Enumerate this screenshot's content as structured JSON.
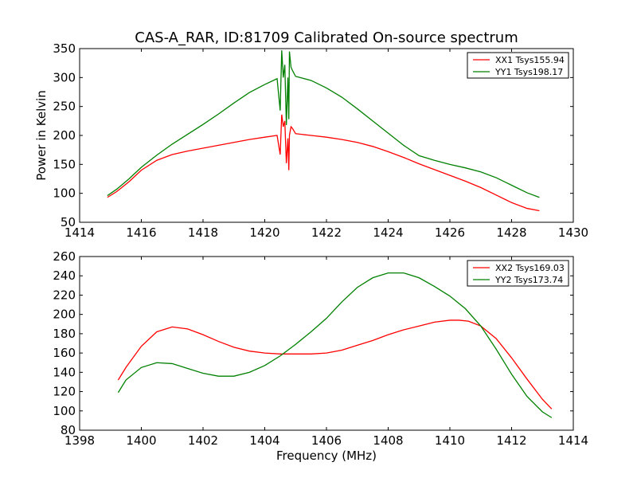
{
  "chart_data": [
    {
      "type": "line",
      "title": "CAS-A_RAR, ID:81709 Calibrated On-source spectrum",
      "xlabel": "",
      "ylabel": "Power in Kelvin",
      "xlim": [
        1414,
        1430
      ],
      "ylim": [
        50,
        350
      ],
      "xticks": [
        1414,
        1416,
        1418,
        1420,
        1422,
        1424,
        1426,
        1428,
        1430
      ],
      "yticks": [
        50,
        100,
        150,
        200,
        250,
        300,
        350
      ],
      "xtick_labels": [
        "1414",
        "1416",
        "1418",
        "1420",
        "1422",
        "1424",
        "1426",
        "1428",
        "1430"
      ],
      "ytick_labels": [
        "50",
        "100",
        "150",
        "200",
        "250",
        "300",
        "350"
      ],
      "grid": false,
      "legend_position": "top-right",
      "series": [
        {
          "name": "XX1 Tsys155.94",
          "color": "#ff0000",
          "x": [
            1414.9,
            1415.2,
            1415.6,
            1416.0,
            1416.5,
            1417.0,
            1417.5,
            1418.0,
            1418.5,
            1419.0,
            1419.5,
            1420.0,
            1420.4,
            1420.5,
            1420.55,
            1420.6,
            1420.65,
            1420.7,
            1420.75,
            1420.78,
            1420.8,
            1420.85,
            1420.9,
            1421.0,
            1421.5,
            1422.0,
            1422.5,
            1423.0,
            1423.5,
            1424.0,
            1424.5,
            1425.0,
            1425.5,
            1426.0,
            1426.5,
            1427.0,
            1427.5,
            1428.0,
            1428.5,
            1428.9
          ],
          "y": [
            93,
            103,
            120,
            140,
            157,
            167,
            173,
            178,
            183,
            188,
            193,
            197,
            200,
            167,
            236,
            215,
            225,
            152,
            195,
            140,
            200,
            215,
            212,
            203,
            200,
            197,
            193,
            188,
            181,
            172,
            162,
            151,
            141,
            131,
            121,
            110,
            97,
            84,
            74,
            70
          ]
        },
        {
          "name": "YY1 Tsys198.17",
          "color": "#008000",
          "x": [
            1414.9,
            1415.2,
            1415.6,
            1416.0,
            1416.5,
            1417.0,
            1417.5,
            1418.0,
            1418.5,
            1419.0,
            1419.5,
            1420.0,
            1420.4,
            1420.5,
            1420.55,
            1420.6,
            1420.65,
            1420.7,
            1420.75,
            1420.78,
            1420.8,
            1420.85,
            1420.9,
            1421.0,
            1421.5,
            1422.0,
            1422.5,
            1423.0,
            1423.5,
            1424.0,
            1424.5,
            1425.0,
            1425.5,
            1426.0,
            1426.5,
            1427.0,
            1427.5,
            1428.0,
            1428.5,
            1428.9
          ],
          "y": [
            96,
            107,
            125,
            145,
            166,
            185,
            202,
            219,
            237,
            256,
            274,
            288,
            298,
            243,
            347,
            300,
            322,
            218,
            300,
            228,
            345,
            318,
            312,
            302,
            295,
            282,
            266,
            246,
            225,
            204,
            183,
            165,
            157,
            150,
            144,
            137,
            127,
            114,
            101,
            93
          ]
        }
      ]
    },
    {
      "type": "line",
      "title": "",
      "xlabel": "Frequency (MHz)",
      "ylabel": "",
      "xlim": [
        1398,
        1414
      ],
      "ylim": [
        80,
        260
      ],
      "xticks": [
        1398,
        1400,
        1402,
        1404,
        1406,
        1408,
        1410,
        1412,
        1414
      ],
      "yticks": [
        80,
        100,
        120,
        140,
        160,
        180,
        200,
        220,
        240,
        260
      ],
      "xtick_labels": [
        "1398",
        "1400",
        "1402",
        "1404",
        "1406",
        "1408",
        "1410",
        "1412",
        "1414"
      ],
      "ytick_labels": [
        "80",
        "100",
        "120",
        "140",
        "160",
        "180",
        "200",
        "220",
        "240",
        "260"
      ],
      "grid": false,
      "legend_position": "top-right",
      "series": [
        {
          "name": "XX2 Tsys169.03",
          "color": "#ff0000",
          "x": [
            1399.25,
            1399.5,
            1400.0,
            1400.5,
            1401.0,
            1401.5,
            1402.0,
            1402.5,
            1403.0,
            1403.5,
            1404.0,
            1404.5,
            1405.0,
            1405.5,
            1406.0,
            1406.5,
            1407.0,
            1407.5,
            1408.0,
            1408.5,
            1409.0,
            1409.5,
            1410.0,
            1410.3,
            1410.6,
            1411.0,
            1411.5,
            1412.0,
            1412.5,
            1413.0,
            1413.3
          ],
          "y": [
            132,
            145,
            167,
            182,
            187,
            185,
            179,
            172,
            166,
            162,
            160,
            159,
            159,
            159,
            160,
            163,
            168,
            173,
            179,
            184,
            188,
            192,
            194,
            194,
            193,
            188,
            175,
            155,
            133,
            112,
            102
          ]
        },
        {
          "name": "YY2 Tsys173.74",
          "color": "#008000",
          "x": [
            1399.25,
            1399.5,
            1400.0,
            1400.5,
            1401.0,
            1401.5,
            1402.0,
            1402.5,
            1403.0,
            1403.5,
            1404.0,
            1404.5,
            1405.0,
            1405.5,
            1406.0,
            1406.5,
            1407.0,
            1407.5,
            1408.0,
            1408.5,
            1409.0,
            1409.5,
            1410.0,
            1410.5,
            1411.0,
            1411.5,
            1412.0,
            1412.5,
            1413.0,
            1413.3
          ],
          "y": [
            119,
            132,
            145,
            150,
            149,
            144,
            139,
            136,
            136,
            140,
            147,
            157,
            169,
            182,
            196,
            213,
            228,
            238,
            243,
            243,
            238,
            229,
            219,
            206,
            188,
            164,
            138,
            115,
            99,
            93
          ]
        }
      ]
    }
  ]
}
